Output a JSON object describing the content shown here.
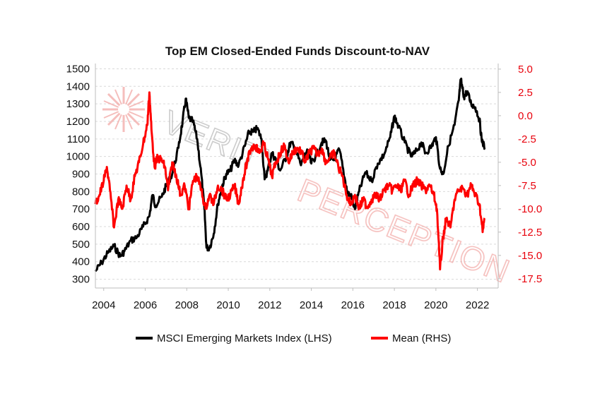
{
  "chart_data": {
    "type": "line",
    "title": "Top EM Closed-Ended Funds Discount-to-NAV",
    "x_ticks": [
      "2004",
      "2006",
      "2008",
      "2010",
      "2012",
      "2014",
      "2016",
      "2018",
      "2020",
      "2022"
    ],
    "xlim": [
      2003.6,
      2023.0
    ],
    "left_axis": {
      "ticks": [
        "1500",
        "1400",
        "1300",
        "1200",
        "1100",
        "1000",
        "900",
        "800",
        "700",
        "600",
        "500",
        "400",
        "300"
      ],
      "ylim": [
        250,
        1530
      ]
    },
    "right_axis": {
      "ticks": [
        "5.0",
        "2.5",
        "0.0",
        "-2.5",
        "-5.0",
        "-7.5",
        "-10.0",
        "-12.5",
        "-15.0",
        "-17.5"
      ],
      "ylim": [
        -18.5,
        5.6
      ]
    },
    "series": [
      {
        "name": "MSCI Emerging Markets Index (LHS)",
        "axis": "left",
        "color": "#000000",
        "points": [
          [
            2003.6,
            345
          ],
          [
            2003.9,
            395
          ],
          [
            2004.2,
            450
          ],
          [
            2004.5,
            490
          ],
          [
            2004.8,
            430
          ],
          [
            2005.0,
            460
          ],
          [
            2005.3,
            520
          ],
          [
            2005.6,
            540
          ],
          [
            2005.9,
            600
          ],
          [
            2006.2,
            660
          ],
          [
            2006.35,
            780
          ],
          [
            2006.5,
            720
          ],
          [
            2006.8,
            770
          ],
          [
            2007.0,
            830
          ],
          [
            2007.3,
            900
          ],
          [
            2007.6,
            1050
          ],
          [
            2007.8,
            1200
          ],
          [
            2007.95,
            1330
          ],
          [
            2008.1,
            1220
          ],
          [
            2008.3,
            1200
          ],
          [
            2008.5,
            1100
          ],
          [
            2008.7,
            900
          ],
          [
            2008.85,
            700
          ],
          [
            2008.95,
            480
          ],
          [
            2009.1,
            480
          ],
          [
            2009.3,
            560
          ],
          [
            2009.5,
            730
          ],
          [
            2009.7,
            830
          ],
          [
            2009.9,
            900
          ],
          [
            2010.1,
            920
          ],
          [
            2010.3,
            980
          ],
          [
            2010.5,
            950
          ],
          [
            2010.8,
            1060
          ],
          [
            2011.0,
            1140
          ],
          [
            2011.2,
            1140
          ],
          [
            2011.4,
            1160
          ],
          [
            2011.6,
            1100
          ],
          [
            2011.75,
            870
          ],
          [
            2011.9,
            920
          ],
          [
            2012.1,
            1020
          ],
          [
            2012.3,
            980
          ],
          [
            2012.5,
            920
          ],
          [
            2012.8,
            1000
          ],
          [
            2013.0,
            1080
          ],
          [
            2013.2,
            1050
          ],
          [
            2013.5,
            950
          ],
          [
            2013.8,
            1040
          ],
          [
            2014.0,
            960
          ],
          [
            2014.2,
            1000
          ],
          [
            2014.5,
            1080
          ],
          [
            2014.7,
            1090
          ],
          [
            2014.9,
            980
          ],
          [
            2015.1,
            980
          ],
          [
            2015.35,
            1040
          ],
          [
            2015.6,
            880
          ],
          [
            2015.75,
            790
          ],
          [
            2015.9,
            780
          ],
          [
            2016.1,
            700
          ],
          [
            2016.3,
            800
          ],
          [
            2016.6,
            910
          ],
          [
            2016.9,
            860
          ],
          [
            2017.2,
            960
          ],
          [
            2017.5,
            1010
          ],
          [
            2017.8,
            1110
          ],
          [
            2018.0,
            1230
          ],
          [
            2018.2,
            1170
          ],
          [
            2018.5,
            1080
          ],
          [
            2018.8,
            1000
          ],
          [
            2019.0,
            1020
          ],
          [
            2019.3,
            1080
          ],
          [
            2019.5,
            1020
          ],
          [
            2019.8,
            1060
          ],
          [
            2020.0,
            1110
          ],
          [
            2020.2,
            930
          ],
          [
            2020.35,
            900
          ],
          [
            2020.6,
            1060
          ],
          [
            2020.9,
            1180
          ],
          [
            2021.1,
            1320
          ],
          [
            2021.2,
            1440
          ],
          [
            2021.35,
            1340
          ],
          [
            2021.5,
            1370
          ],
          [
            2021.7,
            1300
          ],
          [
            2021.9,
            1280
          ],
          [
            2022.1,
            1210
          ],
          [
            2022.2,
            1100
          ],
          [
            2022.35,
            1050
          ]
        ]
      },
      {
        "name": "Mean (RHS)",
        "axis": "right",
        "color": "#ff0000",
        "points": [
          [
            2003.6,
            -9.5
          ],
          [
            2003.8,
            -8.5
          ],
          [
            2004.0,
            -7.0
          ],
          [
            2004.15,
            -5.5
          ],
          [
            2004.3,
            -8.0
          ],
          [
            2004.5,
            -12.0
          ],
          [
            2004.7,
            -9.0
          ],
          [
            2004.9,
            -10.0
          ],
          [
            2005.1,
            -7.5
          ],
          [
            2005.3,
            -9.0
          ],
          [
            2005.5,
            -6.5
          ],
          [
            2005.7,
            -5.0
          ],
          [
            2005.9,
            -3.0
          ],
          [
            2006.1,
            -1.0
          ],
          [
            2006.2,
            2.5
          ],
          [
            2006.3,
            -1.5
          ],
          [
            2006.45,
            -5.5
          ],
          [
            2006.6,
            -4.5
          ],
          [
            2006.8,
            -4.8
          ],
          [
            2006.95,
            -5.5
          ],
          [
            2007.1,
            -8.0
          ],
          [
            2007.3,
            -5.0
          ],
          [
            2007.5,
            -6.5
          ],
          [
            2007.7,
            -8.5
          ],
          [
            2007.9,
            -7.5
          ],
          [
            2008.1,
            -10.0
          ],
          [
            2008.3,
            -7.0
          ],
          [
            2008.5,
            -6.5
          ],
          [
            2008.7,
            -8.0
          ],
          [
            2008.9,
            -10.0
          ],
          [
            2009.1,
            -8.5
          ],
          [
            2009.3,
            -9.5
          ],
          [
            2009.5,
            -7.5
          ],
          [
            2009.7,
            -8.0
          ],
          [
            2009.9,
            -9.0
          ],
          [
            2010.1,
            -8.5
          ],
          [
            2010.3,
            -7.5
          ],
          [
            2010.5,
            -9.5
          ],
          [
            2010.7,
            -7.0
          ],
          [
            2010.9,
            -5.0
          ],
          [
            2011.1,
            -3.5
          ],
          [
            2011.3,
            -3.2
          ],
          [
            2011.5,
            -4.0
          ],
          [
            2011.7,
            -3.0
          ],
          [
            2011.9,
            -4.5
          ],
          [
            2012.1,
            -6.5
          ],
          [
            2012.3,
            -5.0
          ],
          [
            2012.5,
            -4.0
          ],
          [
            2012.7,
            -3.2
          ],
          [
            2012.9,
            -5.0
          ],
          [
            2013.1,
            -4.0
          ],
          [
            2013.3,
            -3.5
          ],
          [
            2013.5,
            -3.8
          ],
          [
            2013.7,
            -5.0
          ],
          [
            2013.9,
            -4.0
          ],
          [
            2014.1,
            -3.5
          ],
          [
            2014.3,
            -4.2
          ],
          [
            2014.5,
            -3.5
          ],
          [
            2014.7,
            -5.0
          ],
          [
            2014.9,
            -4.5
          ],
          [
            2015.1,
            -4.0
          ],
          [
            2015.3,
            -5.5
          ],
          [
            2015.5,
            -6.5
          ],
          [
            2015.7,
            -8.5
          ],
          [
            2015.9,
            -9.5
          ],
          [
            2016.1,
            -8.5
          ],
          [
            2016.3,
            -10.0
          ],
          [
            2016.5,
            -9.0
          ],
          [
            2016.7,
            -9.8
          ],
          [
            2016.9,
            -9.0
          ],
          [
            2017.1,
            -8.5
          ],
          [
            2017.3,
            -9.0
          ],
          [
            2017.5,
            -8.0
          ],
          [
            2017.7,
            -7.5
          ],
          [
            2017.9,
            -8.0
          ],
          [
            2018.1,
            -7.5
          ],
          [
            2018.3,
            -8.0
          ],
          [
            2018.5,
            -7.0
          ],
          [
            2018.7,
            -8.5
          ],
          [
            2018.9,
            -7.5
          ],
          [
            2019.1,
            -7.0
          ],
          [
            2019.3,
            -7.5
          ],
          [
            2019.5,
            -8.0
          ],
          [
            2019.7,
            -7.5
          ],
          [
            2019.9,
            -8.5
          ],
          [
            2020.05,
            -10.0
          ],
          [
            2020.2,
            -16.5
          ],
          [
            2020.35,
            -13.0
          ],
          [
            2020.5,
            -11.0
          ],
          [
            2020.7,
            -12.0
          ],
          [
            2020.9,
            -9.0
          ],
          [
            2021.1,
            -8.0
          ],
          [
            2021.3,
            -7.8
          ],
          [
            2021.5,
            -8.5
          ],
          [
            2021.7,
            -7.5
          ],
          [
            2021.9,
            -8.5
          ],
          [
            2022.1,
            -9.5
          ],
          [
            2022.25,
            -12.5
          ],
          [
            2022.35,
            -11.0
          ]
        ]
      }
    ],
    "legend": [
      "MSCI Emerging Markets Index (LHS)",
      "Mean (RHS)"
    ],
    "legend_position": "bottom",
    "grid": true
  },
  "watermark": {
    "word_top": "VERITY",
    "word_bottom": "PERCEPTION",
    "color": "#f2a9a6"
  },
  "colors": {
    "left_axis_text": "#111111",
    "right_axis_text": "#e8000b",
    "grid": "#d9d9d9",
    "axis_line": "#bdbdbd"
  }
}
